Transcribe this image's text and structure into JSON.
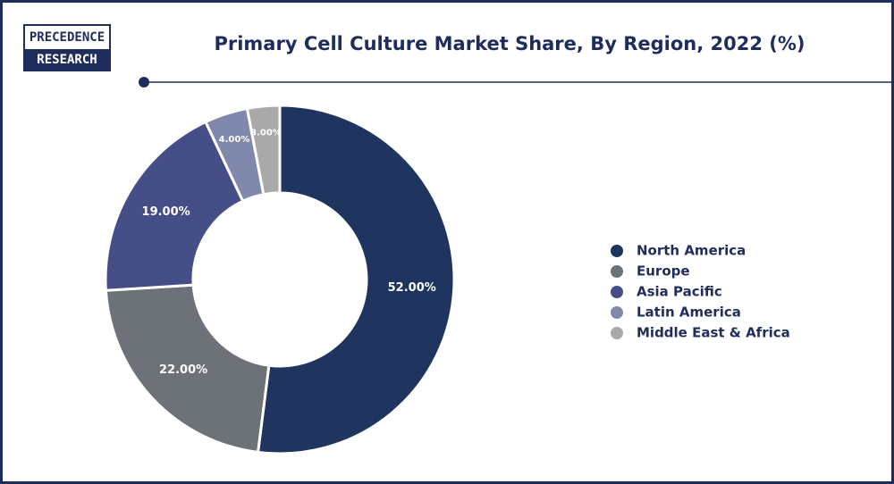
{
  "logo": [
    "PRECEDENCE",
    "RESEARCH"
  ],
  "chart_data": {
    "type": "donut",
    "title": "Primary Cell Culture Market Share, By Region, 2022 (%)",
    "categories": [
      "North America",
      "Europe",
      "Asia Pacific",
      "Latin America",
      "Middle East & Africa"
    ],
    "values": [
      52,
      22,
      19,
      4,
      3
    ],
    "value_labels": [
      "52.00%",
      "22.00%",
      "19.00%",
      "4.00%",
      "3.00%"
    ],
    "colors": [
      "#1f3560",
      "#6d7178",
      "#454e86",
      "#8088ac",
      "#a9a9a9"
    ],
    "legend": "right"
  }
}
